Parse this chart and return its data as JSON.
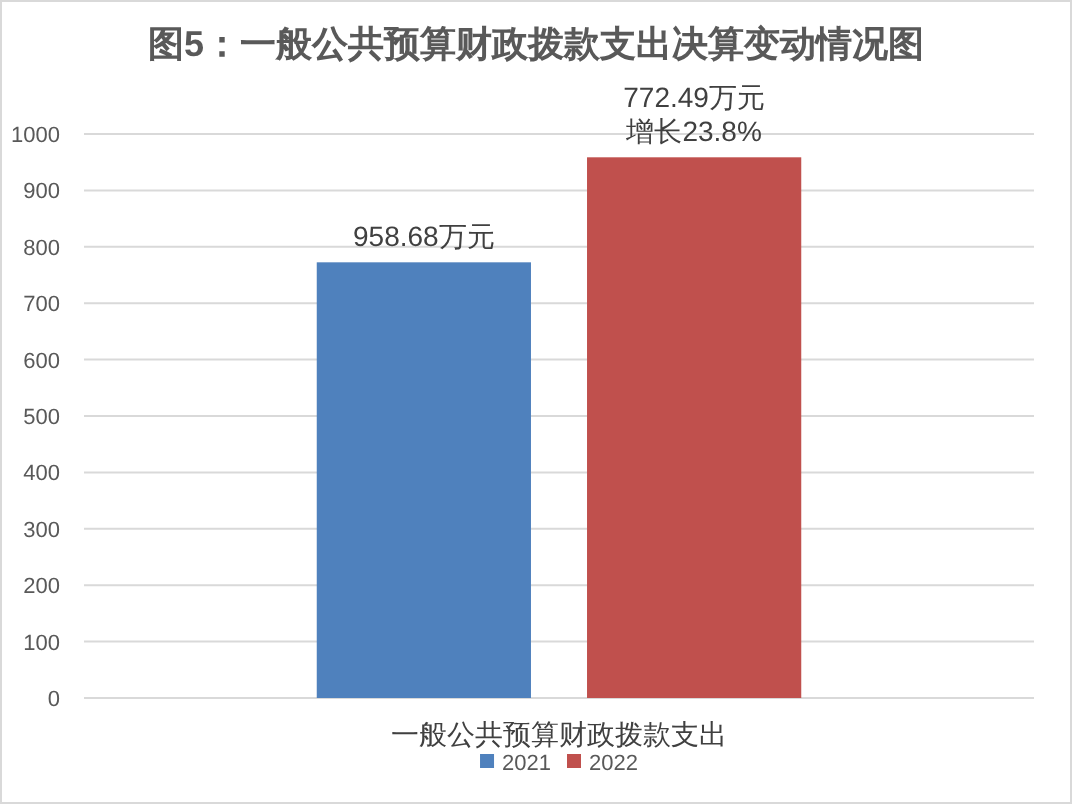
{
  "chart_data": {
    "type": "bar",
    "title": "图5：一般公共预算财政拨款支出决算变动情况图",
    "categories": [
      "一般公共预算财政拨款支出"
    ],
    "series": [
      {
        "name": "2021",
        "color": "#4f81bd",
        "values": [
          772.49
        ]
      },
      {
        "name": "2022",
        "color": "#c0504d",
        "values": [
          958.68
        ]
      }
    ],
    "ylim": [
      0,
      1000
    ],
    "yticks": [
      0,
      100,
      200,
      300,
      400,
      500,
      600,
      700,
      800,
      900,
      1000
    ],
    "grid": "y",
    "legend": "bottom",
    "annotations": [
      "958.68万元",
      "772.49万元增长23.8%"
    ]
  }
}
